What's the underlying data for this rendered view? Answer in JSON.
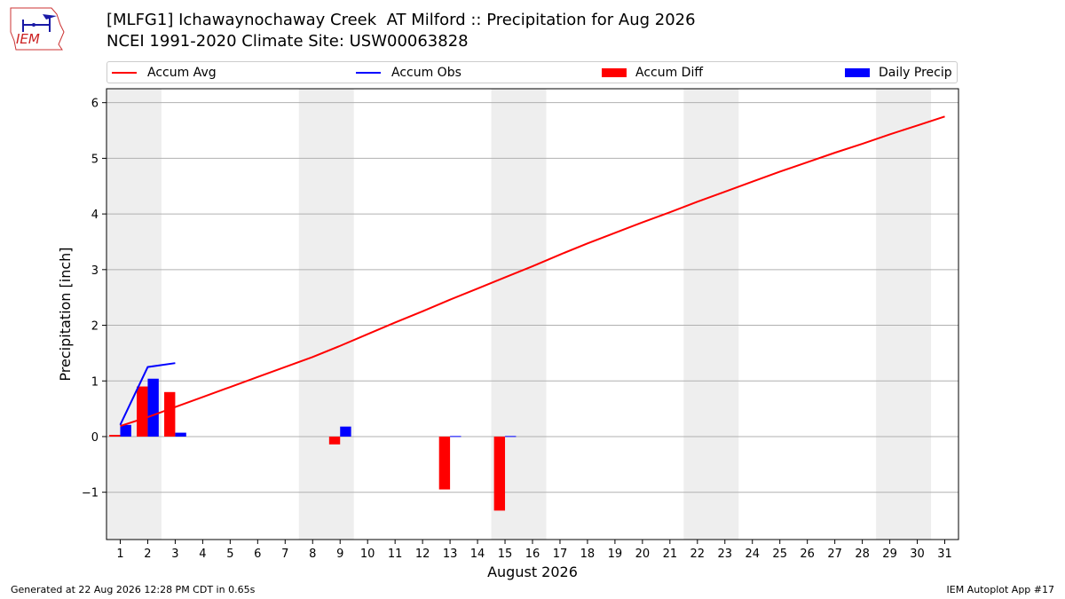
{
  "header": {
    "logo_text": "IEM",
    "title_line1": "[MLFG1] Ichawaynochaway Creek  AT Milford :: Precipitation for Aug 2026",
    "title_line2": "NCEI 1991-2020 Climate Site: USW00063828"
  },
  "legend": {
    "items": [
      {
        "label": "Accum Avg",
        "kind": "line",
        "color": "#ff0000"
      },
      {
        "label": "Accum Obs",
        "kind": "line",
        "color": "#0000ff"
      },
      {
        "label": "Accum Diff",
        "kind": "patch",
        "color": "#ff0000"
      },
      {
        "label": "Daily Precip",
        "kind": "patch",
        "color": "#0000ff"
      }
    ]
  },
  "chart_data": {
    "type": "bar",
    "xlabel": "August 2026",
    "ylabel": "Precipitation [inch]",
    "x": [
      1,
      2,
      3,
      4,
      5,
      6,
      7,
      8,
      9,
      10,
      11,
      12,
      13,
      14,
      15,
      16,
      17,
      18,
      19,
      20,
      21,
      22,
      23,
      24,
      25,
      26,
      27,
      28,
      29,
      30,
      31
    ],
    "ylim": [
      -1.85,
      6.25
    ],
    "yticks": [
      -1,
      0,
      1,
      2,
      3,
      4,
      5,
      6
    ],
    "ytick_labels": [
      "−1",
      "0",
      "1",
      "2",
      "3",
      "4",
      "5",
      "6"
    ],
    "grid": "horizontal",
    "weekend_shading": [
      [
        1,
        2
      ],
      [
        8,
        9
      ],
      [
        15,
        16
      ],
      [
        22,
        23
      ],
      [
        29,
        30
      ]
    ],
    "series": [
      {
        "name": "Accum Avg",
        "type": "line",
        "color": "#ff0000",
        "x": [
          1,
          2,
          3,
          4,
          5,
          6,
          7,
          8,
          9,
          10,
          11,
          12,
          13,
          14,
          15,
          16,
          17,
          18,
          19,
          20,
          21,
          22,
          23,
          24,
          25,
          26,
          27,
          28,
          29,
          30,
          31
        ],
        "values": [
          0.19,
          0.35,
          0.53,
          0.71,
          0.89,
          1.07,
          1.25,
          1.43,
          1.63,
          1.84,
          2.05,
          2.25,
          2.46,
          2.66,
          2.86,
          3.06,
          3.27,
          3.47,
          3.66,
          3.85,
          4.03,
          4.22,
          4.4,
          4.58,
          4.76,
          4.93,
          5.1,
          5.26,
          5.43,
          5.59,
          5.75
        ]
      },
      {
        "name": "Accum Obs",
        "type": "line",
        "color": "#0000ff",
        "x": [
          1,
          2,
          3
        ],
        "values": [
          0.21,
          1.25,
          1.32
        ]
      },
      {
        "name": "Accum Diff",
        "type": "bar",
        "color": "#ff0000",
        "x": [
          1,
          2,
          3,
          9,
          13,
          15
        ],
        "values": [
          0.03,
          0.9,
          0.8,
          -0.14,
          -0.95,
          -1.33
        ]
      },
      {
        "name": "Daily Precip",
        "type": "bar",
        "color": "#0000ff",
        "x": [
          1,
          2,
          3,
          9,
          13,
          15
        ],
        "values": [
          0.21,
          1.04,
          0.07,
          0.18,
          0.01,
          0.01
        ]
      }
    ]
  },
  "footer": {
    "generated": "Generated at 22 Aug 2026 12:28 PM CDT in 0.65s",
    "app": "IEM Autoplot App #17"
  }
}
